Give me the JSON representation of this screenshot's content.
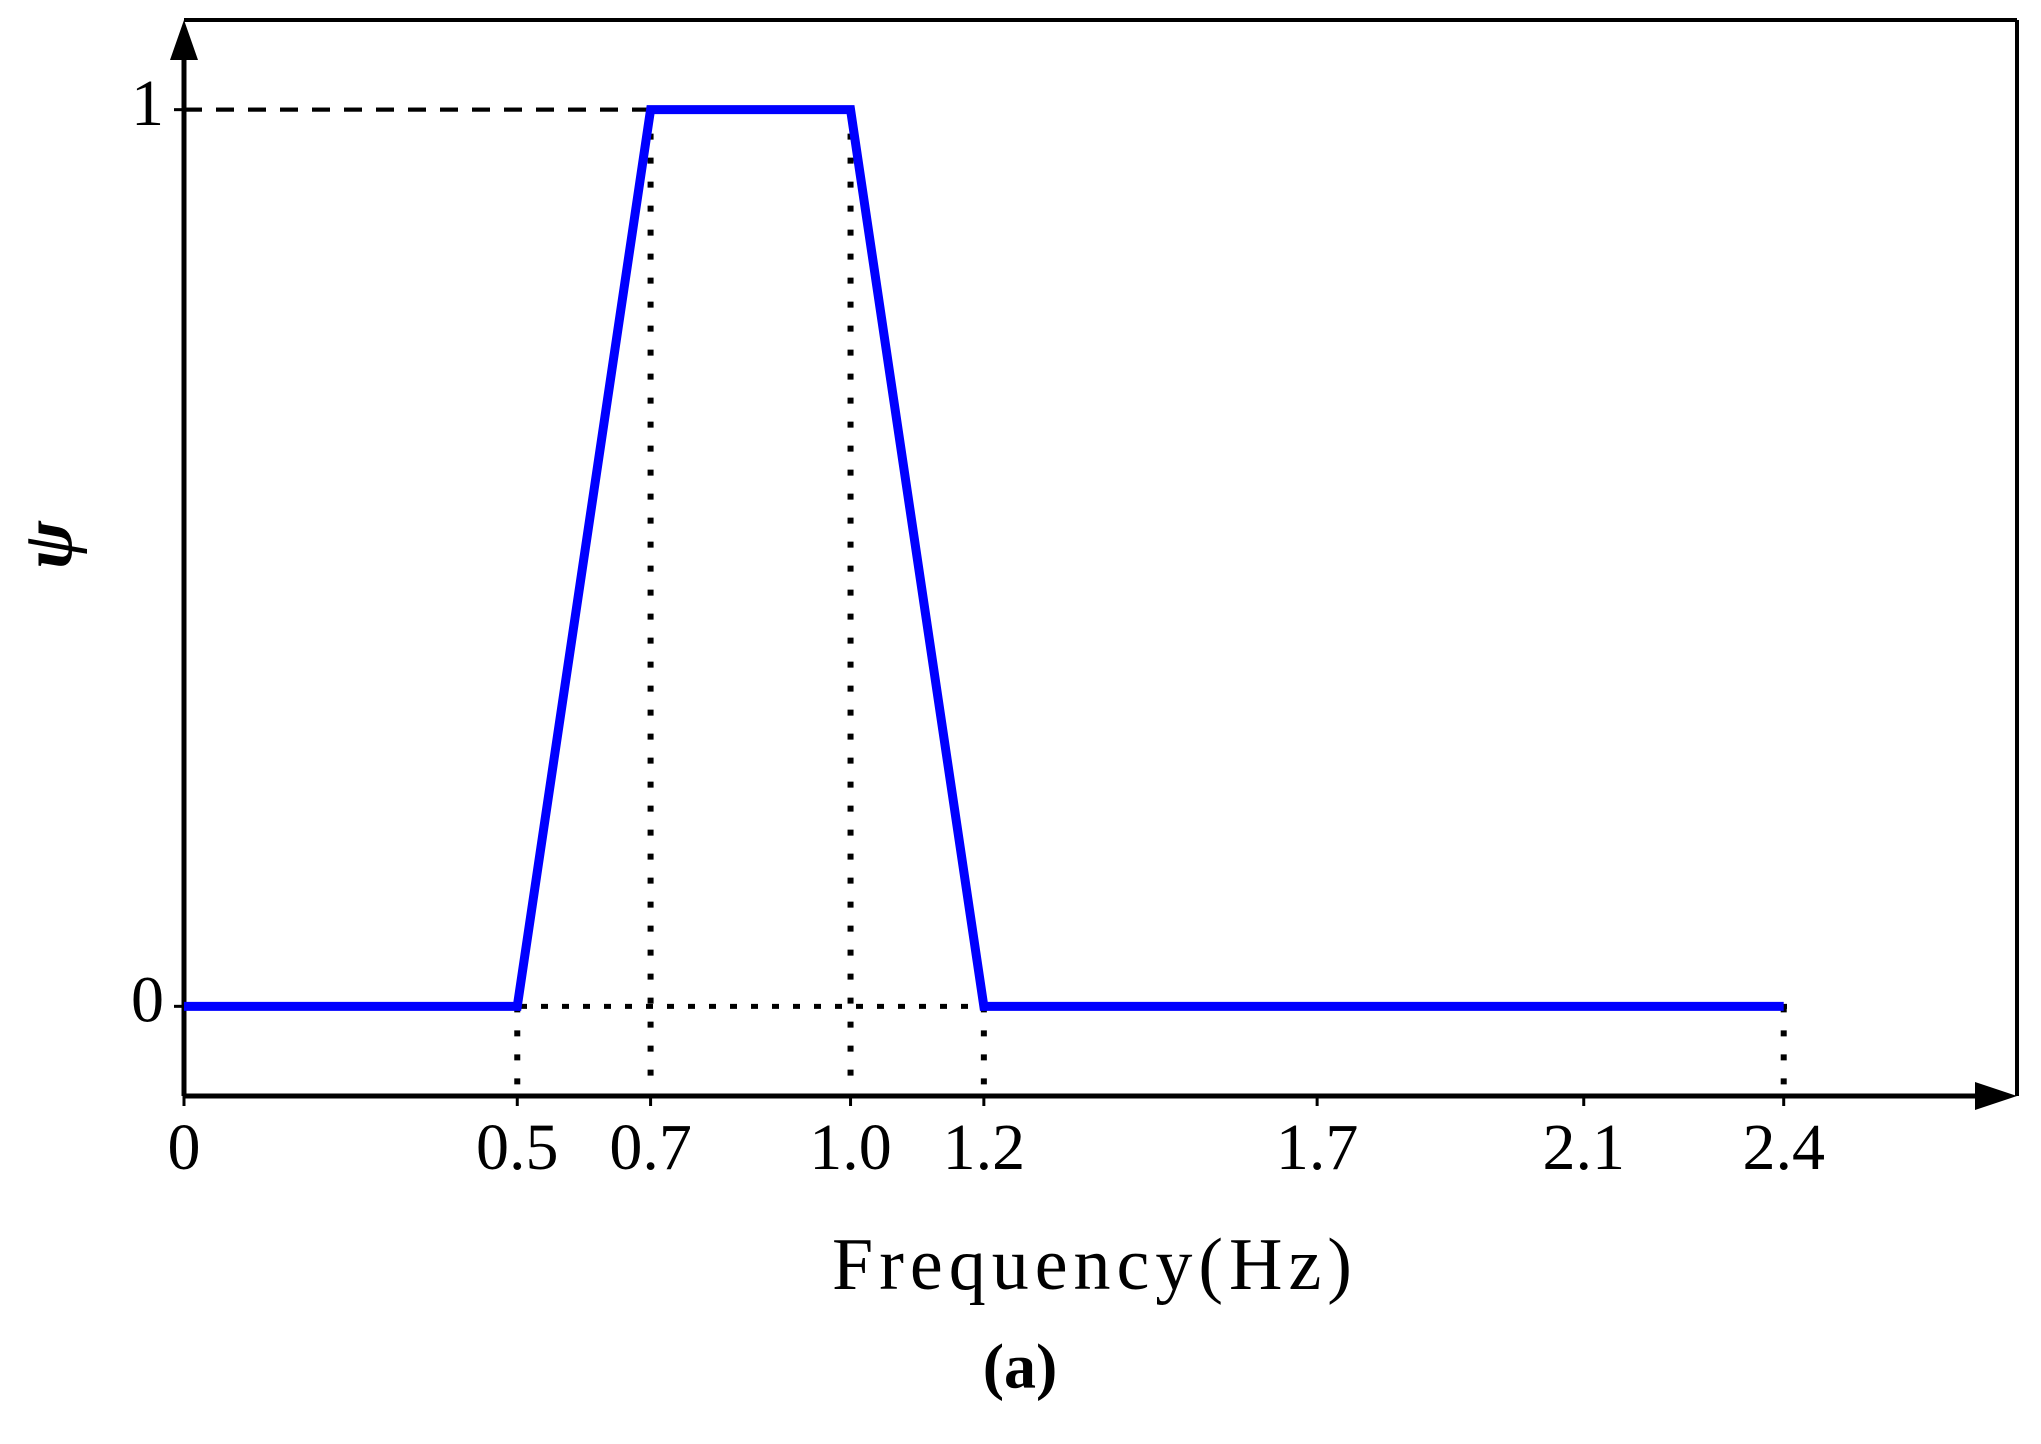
{
  "chart_data": {
    "type": "line",
    "xlabel": "Frequency(Hz)",
    "ylabel": "ψ",
    "caption": "(a)",
    "x": [
      0,
      0.5,
      0.7,
      1.0,
      1.2,
      2.4
    ],
    "series": [
      {
        "color": "#0000ff",
        "values": [
          0,
          0,
          1,
          1,
          0,
          0
        ]
      }
    ],
    "xlim": [
      0,
      2.75
    ],
    "ylim": [
      -0.1,
      1.1
    ],
    "xticks": [
      0,
      0.5,
      0.7,
      {
        "value": 1.0,
        "label": "1.0"
      },
      1.2,
      1.7,
      2.1,
      2.4
    ],
    "yticks": [
      0,
      1
    ]
  }
}
